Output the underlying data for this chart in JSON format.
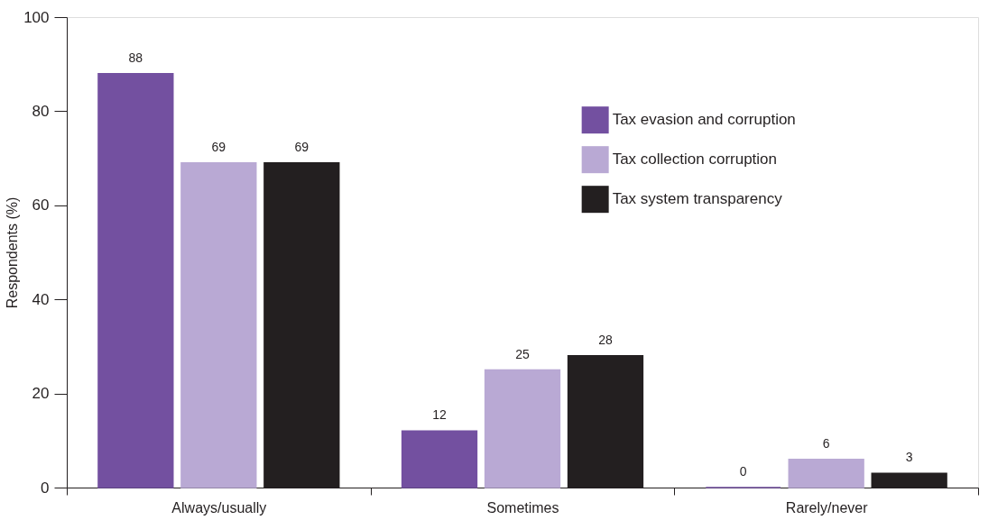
{
  "chart_data": {
    "type": "bar",
    "ylabel": "Respondents (%)",
    "categories": [
      "Always/usually",
      "Sometimes",
      "Rarely/never"
    ],
    "series": [
      {
        "name": "Tax evasion and corruption",
        "color": "#7350a0",
        "values": [
          88,
          12,
          0
        ]
      },
      {
        "name": "Tax collection corruption",
        "color": "#b9a9d4",
        "values": [
          69,
          25,
          6
        ]
      },
      {
        "name": "Tax system transparency",
        "color": "#231f20",
        "values": [
          69,
          28,
          3
        ]
      }
    ],
    "ylim": [
      0,
      100
    ],
    "yticks": [
      0,
      20,
      40,
      60,
      80,
      100
    ],
    "data_labels": true,
    "grid": false,
    "legend": "top right"
  }
}
